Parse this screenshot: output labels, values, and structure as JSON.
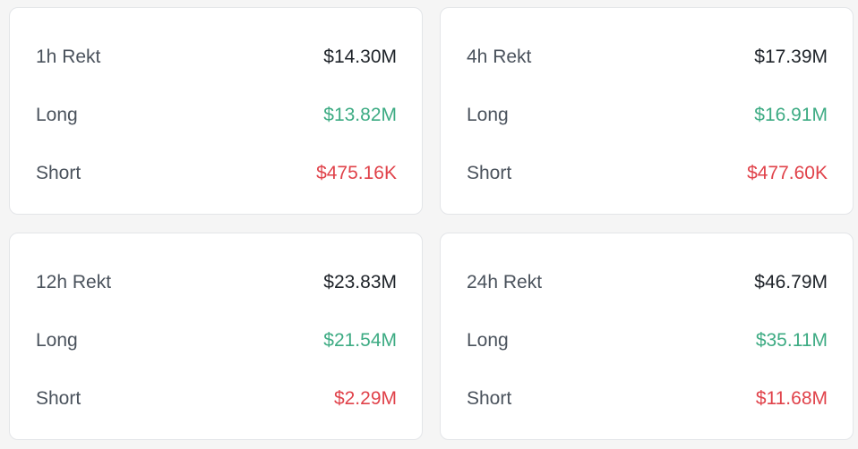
{
  "cards": [
    {
      "title": "1h Rekt",
      "total": "$14.30M",
      "long_label": "Long",
      "long_value": "$13.82M",
      "short_label": "Short",
      "short_value": "$475.16K"
    },
    {
      "title": "4h Rekt",
      "total": "$17.39M",
      "long_label": "Long",
      "long_value": "$16.91M",
      "short_label": "Short",
      "short_value": "$477.60K"
    },
    {
      "title": "12h Rekt",
      "total": "$23.83M",
      "long_label": "Long",
      "long_value": "$21.54M",
      "short_label": "Short",
      "short_value": "$2.29M"
    },
    {
      "title": "24h Rekt",
      "total": "$46.79M",
      "long_label": "Long",
      "long_value": "$35.11M",
      "short_label": "Short",
      "short_value": "$11.68M"
    }
  ],
  "colors": {
    "long": "#3dab83",
    "short": "#e0424a",
    "total": "#1e2329"
  }
}
